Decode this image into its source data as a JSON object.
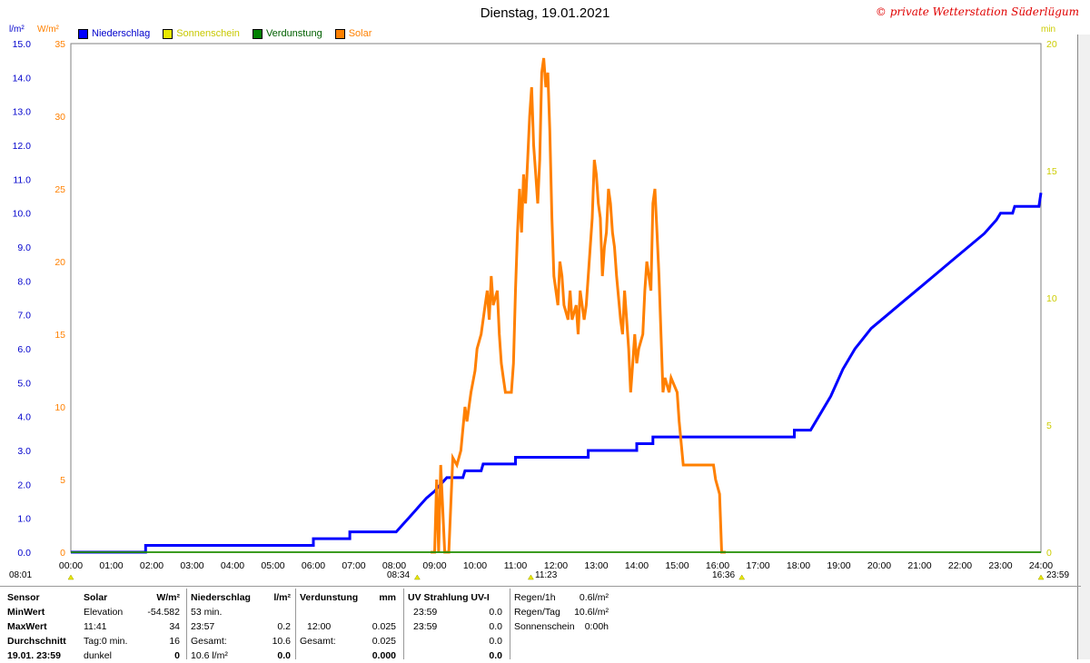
{
  "header": {
    "title": "Dienstag, 19.01.2021",
    "credit": "© private Wetterstation Süderlügum"
  },
  "legend": [
    {
      "label": "Niederschlag",
      "color": "#0000ff"
    },
    {
      "label": "Sonnenschein",
      "color": "#e8e800"
    },
    {
      "label": "Verdunstung",
      "color": "#008000"
    },
    {
      "label": "Solar",
      "color": "#ff8000"
    }
  ],
  "units": {
    "left1": "l/m²",
    "left2": "W/m²",
    "right": "min"
  },
  "markers": {
    "left": "08:01",
    "sunrise": "08:34",
    "max": "11:23",
    "sunset": "16:36",
    "right": "23:59"
  },
  "chart_data": {
    "type": "line",
    "title": "Dienstag, 19.01.2021",
    "x_ticks": [
      "00:00",
      "01:00",
      "02:00",
      "03:00",
      "04:00",
      "05:00",
      "06:00",
      "07:00",
      "08:00",
      "09:00",
      "10:00",
      "11:00",
      "12:00",
      "13:00",
      "14:00",
      "15:00",
      "16:00",
      "17:00",
      "18:00",
      "19:00",
      "20:00",
      "21:00",
      "22:00",
      "23:00",
      "24:00"
    ],
    "xlim": [
      0,
      24
    ],
    "y_left_precip": {
      "label": "l/m²",
      "ylim": [
        0,
        15
      ],
      "ticks": [
        "0.0",
        "1.0",
        "2.0",
        "3.0",
        "4.0",
        "5.0",
        "6.0",
        "7.0",
        "8.0",
        "9.0",
        "10.0",
        "11.0",
        "12.0",
        "13.0",
        "14.0",
        "15.0"
      ]
    },
    "y_left_solar": {
      "label": "W/m²",
      "ylim": [
        0,
        35
      ],
      "ticks": [
        "0",
        "5",
        "10",
        "15",
        "20",
        "25",
        "30",
        "35"
      ]
    },
    "y_right_sun": {
      "label": "min",
      "ylim": [
        0,
        20
      ],
      "ticks": [
        "0",
        "5",
        "10",
        "15",
        "20"
      ]
    },
    "grid": true,
    "legend_position": "top-left",
    "series": [
      {
        "name": "Niederschlag",
        "color": "#0000ff",
        "axis": "precip",
        "points": [
          [
            0,
            0
          ],
          [
            1.85,
            0
          ],
          [
            1.85,
            0.2
          ],
          [
            6,
            0.2
          ],
          [
            6,
            0.4
          ],
          [
            6.9,
            0.4
          ],
          [
            6.9,
            0.6
          ],
          [
            8.05,
            0.6
          ],
          [
            8.2,
            0.8
          ],
          [
            8.35,
            1.0
          ],
          [
            8.5,
            1.2
          ],
          [
            8.65,
            1.4
          ],
          [
            8.8,
            1.6
          ],
          [
            9.0,
            1.8
          ],
          [
            9.15,
            2.0
          ],
          [
            9.3,
            2.2
          ],
          [
            9.7,
            2.2
          ],
          [
            9.75,
            2.4
          ],
          [
            10.15,
            2.4
          ],
          [
            10.2,
            2.6
          ],
          [
            11.0,
            2.6
          ],
          [
            11.0,
            2.8
          ],
          [
            12.8,
            2.8
          ],
          [
            12.8,
            3.0
          ],
          [
            14.0,
            3.0
          ],
          [
            14.0,
            3.2
          ],
          [
            14.4,
            3.2
          ],
          [
            14.4,
            3.4
          ],
          [
            17.9,
            3.4
          ],
          [
            17.9,
            3.6
          ],
          [
            18.3,
            3.6
          ],
          [
            18.5,
            4.0
          ],
          [
            18.8,
            4.6
          ],
          [
            19.1,
            5.4
          ],
          [
            19.4,
            6.0
          ],
          [
            19.8,
            6.6
          ],
          [
            20.2,
            7.0
          ],
          [
            20.6,
            7.4
          ],
          [
            21.0,
            7.8
          ],
          [
            21.4,
            8.2
          ],
          [
            21.8,
            8.6
          ],
          [
            22.2,
            9.0
          ],
          [
            22.6,
            9.4
          ],
          [
            22.9,
            9.8
          ],
          [
            23.0,
            10.0
          ],
          [
            23.3,
            10.0
          ],
          [
            23.35,
            10.2
          ],
          [
            23.95,
            10.2
          ],
          [
            24,
            10.6
          ]
        ]
      },
      {
        "name": "Solar",
        "color": "#ff8000",
        "axis": "solar",
        "points": [
          [
            8.9,
            0
          ],
          [
            9.0,
            0
          ],
          [
            9.05,
            5
          ],
          [
            9.1,
            0
          ],
          [
            9.15,
            6
          ],
          [
            9.25,
            0
          ],
          [
            9.35,
            0
          ],
          [
            9.45,
            6.5
          ],
          [
            9.55,
            6
          ],
          [
            9.65,
            7
          ],
          [
            9.75,
            10
          ],
          [
            9.8,
            9
          ],
          [
            9.9,
            11
          ],
          [
            10.0,
            12.5
          ],
          [
            10.05,
            14
          ],
          [
            10.15,
            15
          ],
          [
            10.25,
            17
          ],
          [
            10.3,
            18
          ],
          [
            10.35,
            16
          ],
          [
            10.4,
            19
          ],
          [
            10.45,
            17
          ],
          [
            10.55,
            18
          ],
          [
            10.6,
            15
          ],
          [
            10.65,
            13
          ],
          [
            10.7,
            12
          ],
          [
            10.75,
            11
          ],
          [
            10.9,
            11
          ],
          [
            10.95,
            13
          ],
          [
            11.0,
            18
          ],
          [
            11.05,
            22
          ],
          [
            11.1,
            25
          ],
          [
            11.15,
            22
          ],
          [
            11.2,
            26
          ],
          [
            11.25,
            24
          ],
          [
            11.3,
            27
          ],
          [
            11.35,
            30
          ],
          [
            11.4,
            32
          ],
          [
            11.45,
            28
          ],
          [
            11.5,
            26
          ],
          [
            11.55,
            24
          ],
          [
            11.6,
            27
          ],
          [
            11.65,
            33
          ],
          [
            11.7,
            34
          ],
          [
            11.75,
            32
          ],
          [
            11.8,
            33
          ],
          [
            11.85,
            29
          ],
          [
            11.9,
            23
          ],
          [
            11.95,
            19
          ],
          [
            12.0,
            18
          ],
          [
            12.05,
            17
          ],
          [
            12.1,
            20
          ],
          [
            12.15,
            19
          ],
          [
            12.2,
            17
          ],
          [
            12.3,
            16
          ],
          [
            12.35,
            18
          ],
          [
            12.4,
            16
          ],
          [
            12.5,
            17
          ],
          [
            12.55,
            15
          ],
          [
            12.6,
            18
          ],
          [
            12.7,
            16
          ],
          [
            12.75,
            17
          ],
          [
            12.85,
            21
          ],
          [
            12.9,
            23
          ],
          [
            12.95,
            27
          ],
          [
            13.0,
            26
          ],
          [
            13.05,
            24
          ],
          [
            13.1,
            23
          ],
          [
            13.15,
            19
          ],
          [
            13.2,
            21
          ],
          [
            13.25,
            22
          ],
          [
            13.3,
            25
          ],
          [
            13.35,
            24
          ],
          [
            13.4,
            22
          ],
          [
            13.45,
            21
          ],
          [
            13.5,
            19
          ],
          [
            13.6,
            16
          ],
          [
            13.65,
            15
          ],
          [
            13.7,
            18
          ],
          [
            13.75,
            16
          ],
          [
            13.8,
            14
          ],
          [
            13.85,
            11
          ],
          [
            13.9,
            13
          ],
          [
            13.95,
            15
          ],
          [
            14.0,
            13
          ],
          [
            14.05,
            14
          ],
          [
            14.15,
            15
          ],
          [
            14.2,
            18
          ],
          [
            14.25,
            20
          ],
          [
            14.3,
            19
          ],
          [
            14.35,
            18
          ],
          [
            14.4,
            24
          ],
          [
            14.45,
            25
          ],
          [
            14.5,
            22
          ],
          [
            14.55,
            19
          ],
          [
            14.6,
            15
          ],
          [
            14.65,
            11
          ],
          [
            14.7,
            12
          ],
          [
            14.8,
            11
          ],
          [
            14.85,
            12
          ],
          [
            15.0,
            11
          ],
          [
            15.05,
            9
          ],
          [
            15.15,
            6
          ],
          [
            15.25,
            6
          ],
          [
            15.3,
            6
          ],
          [
            15.9,
            6
          ],
          [
            15.95,
            5
          ],
          [
            16.05,
            4
          ],
          [
            16.1,
            0
          ],
          [
            16.2,
            0
          ]
        ]
      },
      {
        "name": "Sonnenschein",
        "color": "#e8e800",
        "axis": "sun",
        "points": [
          [
            0,
            0
          ],
          [
            24,
            0
          ]
        ]
      },
      {
        "name": "Verdunstung",
        "color": "#008000",
        "axis": "precip",
        "points": [
          [
            0,
            0
          ],
          [
            24,
            0
          ]
        ]
      }
    ]
  },
  "stats": {
    "row_labels": [
      "Sensor",
      "MinWert",
      "MaxWert",
      "Durchschnitt",
      "19.01. 23:59"
    ],
    "solar": {
      "header": "Solar",
      "unit": "W/m²",
      "rows": [
        [
          "Elevation",
          "-54.582"
        ],
        [
          "11:41",
          "34"
        ],
        [
          "Tag:0 min.",
          "16"
        ],
        [
          "dunkel",
          "0"
        ]
      ]
    },
    "precip": {
      "header": "Niederschlag",
      "unit": "l/m²",
      "rows": [
        [
          "53 min.",
          ""
        ],
        [
          "23:57",
          "0.2"
        ],
        [
          "Gesamt:",
          "10.6"
        ],
        [
          "10.6 l/m²",
          "0.0"
        ]
      ]
    },
    "evap": {
      "header": "Verdunstung",
      "unit": "mm",
      "rows": [
        [
          "",
          ""
        ],
        [
          "12:00",
          "0.025"
        ],
        [
          "Gesamt:",
          "0.025"
        ],
        [
          "",
          "0.000"
        ]
      ]
    },
    "uv": {
      "header": "UV Strahlung UV-I",
      "unit": "",
      "rows": [
        [
          "23:59",
          "0.0"
        ],
        [
          "23:59",
          "0.0"
        ],
        [
          "",
          "0.0"
        ],
        [
          "",
          "0.0"
        ]
      ]
    },
    "misc": {
      "rows": [
        [
          "Regen/1h",
          "0.6l/m²"
        ],
        [
          "Regen/Tag",
          "10.6l/m²"
        ],
        [
          "Sonnenschein",
          "0:00h"
        ]
      ]
    }
  }
}
